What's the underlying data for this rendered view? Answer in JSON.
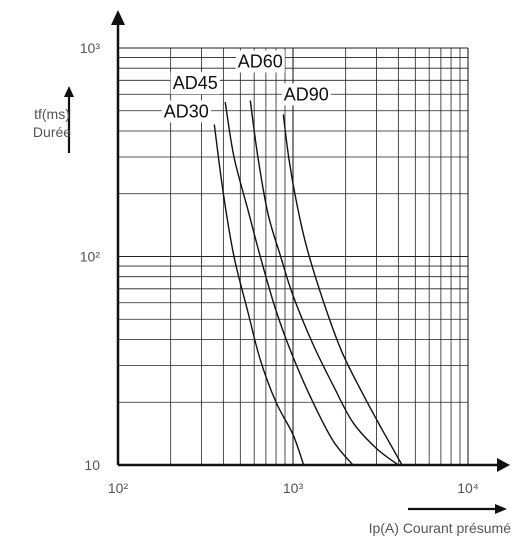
{
  "chart_data": {
    "type": "line",
    "title": "",
    "x_scale": "log",
    "y_scale": "log",
    "xlim": [
      100,
      10000
    ],
    "ylim": [
      10,
      1000
    ],
    "grid": true,
    "xlabel": "Ip(A) Courant présumé",
    "ylabel_lines": [
      "tf(ms)",
      "Durée"
    ],
    "x_ticks": [
      {
        "value": 100,
        "label": "10²"
      },
      {
        "value": 1000,
        "label": "10³"
      },
      {
        "value": 10000,
        "label": "10⁴"
      }
    ],
    "y_ticks": [
      {
        "value": 10,
        "label": "10"
      },
      {
        "value": 100,
        "label": "10²"
      },
      {
        "value": 1000,
        "label": "10³"
      }
    ],
    "series": [
      {
        "name": "AD30",
        "points": [
          [
            355,
            430
          ],
          [
            400,
            200
          ],
          [
            460,
            100
          ],
          [
            550,
            55
          ],
          [
            650,
            32
          ],
          [
            800,
            20
          ],
          [
            1000,
            14
          ],
          [
            1150,
            10
          ]
        ]
      },
      {
        "name": "AD45",
        "points": [
          [
            410,
            550
          ],
          [
            460,
            300
          ],
          [
            550,
            170
          ],
          [
            650,
            100
          ],
          [
            800,
            55
          ],
          [
            1000,
            33
          ],
          [
            1300,
            20
          ],
          [
            1700,
            13
          ],
          [
            2200,
            10
          ]
        ]
      },
      {
        "name": "AD60",
        "points": [
          [
            570,
            560
          ],
          [
            630,
            300
          ],
          [
            720,
            160
          ],
          [
            850,
            100
          ],
          [
            1000,
            65
          ],
          [
            1300,
            38
          ],
          [
            1700,
            24
          ],
          [
            2200,
            16
          ],
          [
            3000,
            12
          ],
          [
            4000,
            10
          ]
        ]
      },
      {
        "name": "AD90",
        "points": [
          [
            880,
            480
          ],
          [
            950,
            290
          ],
          [
            1050,
            180
          ],
          [
            1200,
            110
          ],
          [
            1500,
            60
          ],
          [
            1900,
            35
          ],
          [
            2500,
            22
          ],
          [
            3200,
            15
          ],
          [
            4200,
            10
          ]
        ]
      }
    ]
  }
}
